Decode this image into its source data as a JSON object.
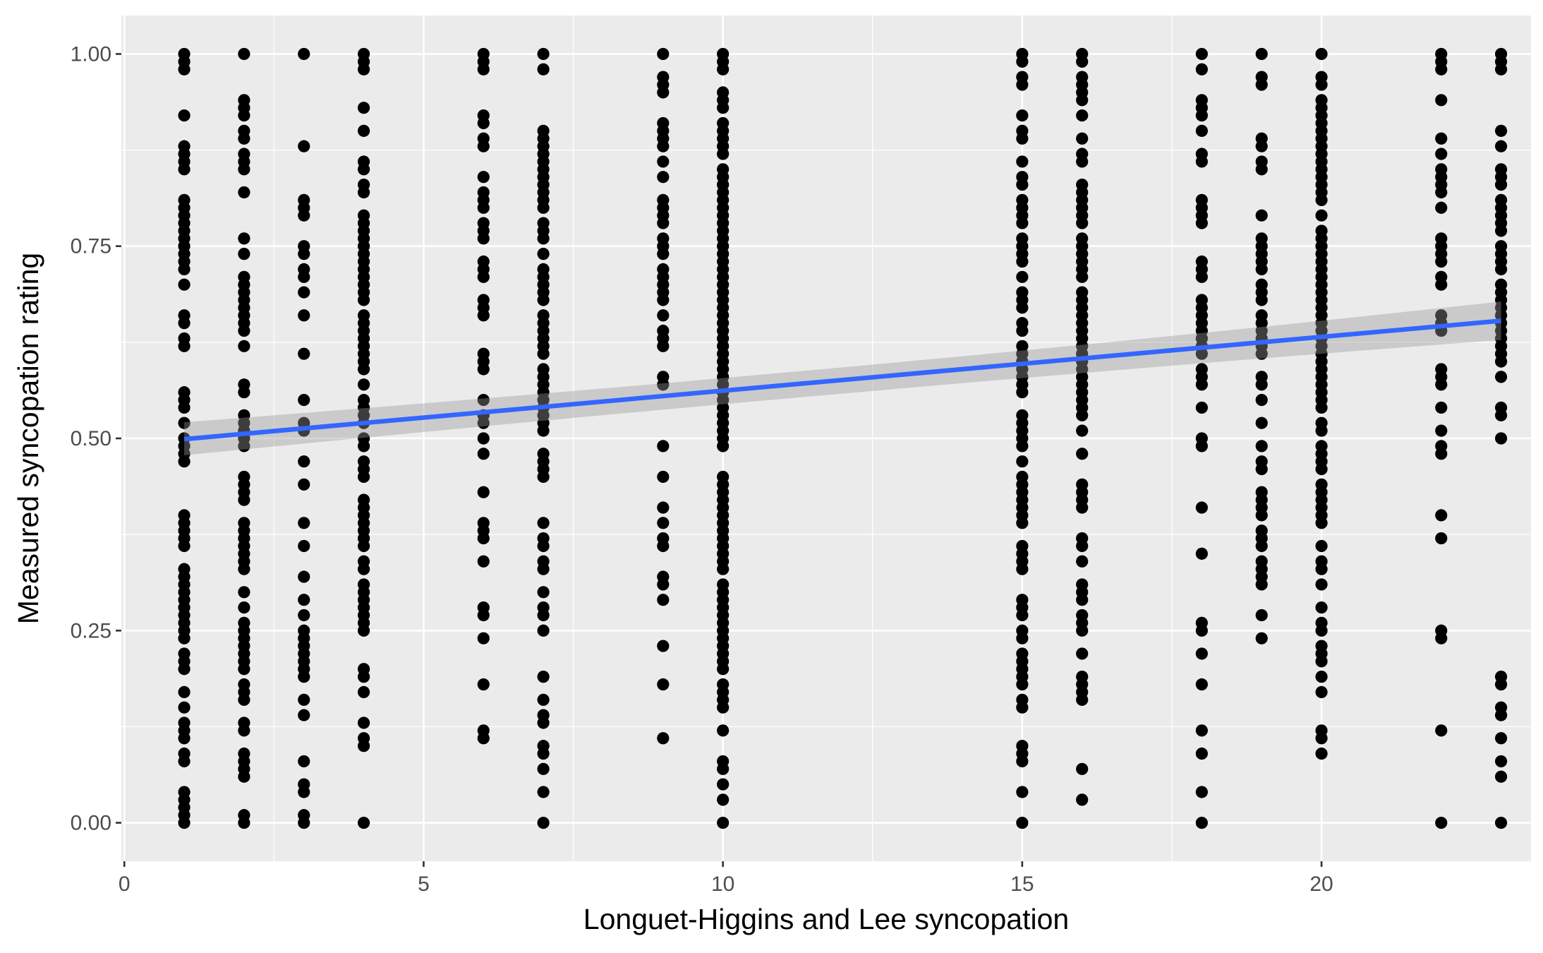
{
  "chart_data": {
    "type": "scatter",
    "title": "",
    "xlabel": "Longuet-Higgins and Lee syncopation",
    "ylabel": "Measured syncopation rating",
    "xlim": [
      -0.05,
      23.5
    ],
    "ylim": [
      -0.05,
      1.05
    ],
    "x_ticks": [
      0,
      5,
      10,
      15,
      20
    ],
    "x_tick_labels": [
      "0",
      "5",
      "10",
      "15",
      "20"
    ],
    "y_ticks": [
      0,
      0.25,
      0.5,
      0.75,
      1.0
    ],
    "y_tick_labels": [
      "0.00",
      "0.25",
      "0.50",
      "0.75",
      "1.00"
    ],
    "grid": true,
    "legend": "none",
    "colors": {
      "panel_background": "#ebebeb",
      "grid": "#ffffff",
      "points": "#000000",
      "fit_line": "#3366ff",
      "confidence_band": "#999999"
    },
    "points": [
      {
        "x": 1,
        "y": [
          1.0,
          0.99,
          0.98,
          0.92,
          0.88,
          0.87,
          0.86,
          0.85,
          0.81,
          0.8,
          0.79,
          0.78,
          0.77,
          0.76,
          0.75,
          0.74,
          0.73,
          0.72,
          0.7,
          0.66,
          0.65,
          0.63,
          0.62,
          0.56,
          0.55,
          0.54,
          0.52,
          0.5,
          0.49,
          0.48,
          0.47,
          0.4,
          0.39,
          0.38,
          0.37,
          0.36,
          0.33,
          0.32,
          0.31,
          0.3,
          0.29,
          0.28,
          0.27,
          0.26,
          0.25,
          0.24,
          0.22,
          0.21,
          0.2,
          0.17,
          0.15,
          0.13,
          0.12,
          0.11,
          0.09,
          0.08,
          0.04,
          0.03,
          0.02,
          0.01,
          0.0
        ]
      },
      {
        "x": 2,
        "y": [
          1.0,
          0.94,
          0.93,
          0.92,
          0.9,
          0.89,
          0.87,
          0.86,
          0.85,
          0.82,
          0.76,
          0.74,
          0.71,
          0.7,
          0.69,
          0.68,
          0.67,
          0.66,
          0.65,
          0.64,
          0.62,
          0.57,
          0.56,
          0.53,
          0.52,
          0.51,
          0.5,
          0.49,
          0.45,
          0.44,
          0.43,
          0.42,
          0.39,
          0.38,
          0.37,
          0.36,
          0.35,
          0.34,
          0.33,
          0.3,
          0.28,
          0.26,
          0.25,
          0.24,
          0.23,
          0.22,
          0.21,
          0.2,
          0.18,
          0.17,
          0.16,
          0.13,
          0.12,
          0.09,
          0.08,
          0.07,
          0.06,
          0.01,
          0.0
        ]
      },
      {
        "x": 3,
        "y": [
          1.0,
          0.88,
          0.81,
          0.8,
          0.79,
          0.75,
          0.74,
          0.72,
          0.71,
          0.69,
          0.66,
          0.61,
          0.55,
          0.52,
          0.51,
          0.47,
          0.44,
          0.39,
          0.36,
          0.32,
          0.29,
          0.27,
          0.25,
          0.24,
          0.23,
          0.22,
          0.21,
          0.2,
          0.19,
          0.16,
          0.14,
          0.08,
          0.05,
          0.04,
          0.01,
          0.0
        ]
      },
      {
        "x": 4,
        "y": [
          1.0,
          0.99,
          0.98,
          0.93,
          0.9,
          0.86,
          0.85,
          0.83,
          0.82,
          0.79,
          0.78,
          0.77,
          0.76,
          0.75,
          0.74,
          0.73,
          0.72,
          0.71,
          0.7,
          0.69,
          0.68,
          0.66,
          0.65,
          0.64,
          0.63,
          0.62,
          0.61,
          0.6,
          0.59,
          0.57,
          0.55,
          0.54,
          0.53,
          0.52,
          0.5,
          0.49,
          0.47,
          0.46,
          0.45,
          0.42,
          0.41,
          0.4,
          0.39,
          0.38,
          0.37,
          0.36,
          0.34,
          0.33,
          0.31,
          0.3,
          0.29,
          0.28,
          0.27,
          0.26,
          0.25,
          0.2,
          0.19,
          0.17,
          0.13,
          0.11,
          0.1,
          0.0
        ]
      },
      {
        "x": 6,
        "y": [
          1.0,
          0.99,
          0.98,
          0.92,
          0.91,
          0.89,
          0.88,
          0.84,
          0.82,
          0.81,
          0.8,
          0.78,
          0.77,
          0.76,
          0.73,
          0.72,
          0.71,
          0.68,
          0.67,
          0.66,
          0.61,
          0.6,
          0.59,
          0.55,
          0.53,
          0.52,
          0.5,
          0.48,
          0.43,
          0.39,
          0.38,
          0.37,
          0.34,
          0.28,
          0.27,
          0.24,
          0.18,
          0.12,
          0.11
        ]
      },
      {
        "x": 7,
        "y": [
          1.0,
          0.98,
          0.9,
          0.89,
          0.88,
          0.87,
          0.86,
          0.85,
          0.84,
          0.83,
          0.82,
          0.81,
          0.8,
          0.78,
          0.77,
          0.76,
          0.74,
          0.72,
          0.71,
          0.7,
          0.69,
          0.68,
          0.66,
          0.65,
          0.64,
          0.63,
          0.62,
          0.61,
          0.59,
          0.58,
          0.57,
          0.56,
          0.55,
          0.54,
          0.53,
          0.52,
          0.51,
          0.48,
          0.47,
          0.46,
          0.45,
          0.39,
          0.37,
          0.36,
          0.34,
          0.33,
          0.3,
          0.28,
          0.27,
          0.25,
          0.19,
          0.16,
          0.14,
          0.13,
          0.1,
          0.09,
          0.07,
          0.04,
          0.0
        ]
      },
      {
        "x": 9,
        "y": [
          1.0,
          0.97,
          0.96,
          0.95,
          0.91,
          0.9,
          0.89,
          0.88,
          0.86,
          0.84,
          0.81,
          0.8,
          0.79,
          0.78,
          0.76,
          0.75,
          0.74,
          0.72,
          0.71,
          0.7,
          0.69,
          0.68,
          0.66,
          0.64,
          0.63,
          0.62,
          0.58,
          0.57,
          0.49,
          0.45,
          0.41,
          0.39,
          0.37,
          0.36,
          0.32,
          0.31,
          0.29,
          0.23,
          0.18,
          0.11
        ]
      },
      {
        "x": 10,
        "y": [
          1.0,
          0.99,
          0.98,
          0.95,
          0.94,
          0.93,
          0.91,
          0.9,
          0.89,
          0.88,
          0.87,
          0.85,
          0.84,
          0.83,
          0.82,
          0.81,
          0.8,
          0.79,
          0.78,
          0.77,
          0.76,
          0.75,
          0.74,
          0.73,
          0.72,
          0.71,
          0.7,
          0.69,
          0.68,
          0.67,
          0.66,
          0.65,
          0.64,
          0.63,
          0.62,
          0.61,
          0.6,
          0.59,
          0.58,
          0.57,
          0.56,
          0.55,
          0.54,
          0.53,
          0.52,
          0.51,
          0.5,
          0.49,
          0.45,
          0.44,
          0.43,
          0.42,
          0.41,
          0.4,
          0.39,
          0.38,
          0.37,
          0.36,
          0.35,
          0.34,
          0.33,
          0.31,
          0.3,
          0.29,
          0.28,
          0.27,
          0.26,
          0.25,
          0.24,
          0.23,
          0.22,
          0.21,
          0.2,
          0.18,
          0.17,
          0.16,
          0.15,
          0.12,
          0.08,
          0.07,
          0.05,
          0.03,
          0.0
        ]
      },
      {
        "x": 15,
        "y": [
          1.0,
          0.99,
          0.97,
          0.96,
          0.92,
          0.9,
          0.89,
          0.86,
          0.84,
          0.83,
          0.81,
          0.8,
          0.79,
          0.78,
          0.76,
          0.75,
          0.74,
          0.73,
          0.71,
          0.69,
          0.68,
          0.67,
          0.65,
          0.64,
          0.62,
          0.61,
          0.6,
          0.59,
          0.58,
          0.57,
          0.56,
          0.53,
          0.52,
          0.51,
          0.5,
          0.49,
          0.47,
          0.45,
          0.44,
          0.43,
          0.42,
          0.41,
          0.4,
          0.39,
          0.36,
          0.35,
          0.34,
          0.33,
          0.29,
          0.28,
          0.27,
          0.25,
          0.24,
          0.22,
          0.21,
          0.2,
          0.19,
          0.18,
          0.16,
          0.15,
          0.1,
          0.09,
          0.08,
          0.04,
          0.0
        ]
      },
      {
        "x": 16,
        "y": [
          1.0,
          0.99,
          0.97,
          0.96,
          0.95,
          0.94,
          0.92,
          0.89,
          0.87,
          0.86,
          0.83,
          0.82,
          0.81,
          0.8,
          0.79,
          0.78,
          0.76,
          0.75,
          0.74,
          0.73,
          0.72,
          0.71,
          0.69,
          0.68,
          0.67,
          0.66,
          0.65,
          0.64,
          0.63,
          0.62,
          0.61,
          0.6,
          0.59,
          0.58,
          0.57,
          0.56,
          0.55,
          0.54,
          0.53,
          0.51,
          0.48,
          0.44,
          0.43,
          0.42,
          0.41,
          0.37,
          0.36,
          0.34,
          0.31,
          0.3,
          0.29,
          0.27,
          0.26,
          0.25,
          0.22,
          0.19,
          0.18,
          0.17,
          0.16,
          0.07,
          0.03
        ]
      },
      {
        "x": 18,
        "y": [
          1.0,
          0.98,
          0.94,
          0.93,
          0.92,
          0.9,
          0.87,
          0.86,
          0.81,
          0.8,
          0.79,
          0.78,
          0.73,
          0.72,
          0.71,
          0.68,
          0.67,
          0.66,
          0.65,
          0.64,
          0.63,
          0.62,
          0.61,
          0.59,
          0.58,
          0.57,
          0.54,
          0.5,
          0.49,
          0.41,
          0.35,
          0.26,
          0.25,
          0.22,
          0.18,
          0.12,
          0.09,
          0.04,
          0.0
        ]
      },
      {
        "x": 19,
        "y": [
          1.0,
          0.97,
          0.96,
          0.89,
          0.88,
          0.86,
          0.85,
          0.79,
          0.76,
          0.75,
          0.74,
          0.73,
          0.72,
          0.7,
          0.69,
          0.68,
          0.66,
          0.65,
          0.64,
          0.63,
          0.62,
          0.61,
          0.58,
          0.57,
          0.55,
          0.52,
          0.49,
          0.47,
          0.46,
          0.43,
          0.42,
          0.41,
          0.4,
          0.38,
          0.37,
          0.36,
          0.34,
          0.33,
          0.32,
          0.31,
          0.27,
          0.24
        ]
      },
      {
        "x": 20,
        "y": [
          1.0,
          0.97,
          0.96,
          0.94,
          0.93,
          0.92,
          0.91,
          0.9,
          0.89,
          0.88,
          0.87,
          0.86,
          0.85,
          0.84,
          0.83,
          0.82,
          0.81,
          0.79,
          0.77,
          0.76,
          0.75,
          0.74,
          0.73,
          0.72,
          0.71,
          0.7,
          0.69,
          0.68,
          0.67,
          0.66,
          0.65,
          0.64,
          0.63,
          0.62,
          0.61,
          0.6,
          0.59,
          0.58,
          0.57,
          0.56,
          0.55,
          0.54,
          0.52,
          0.51,
          0.49,
          0.48,
          0.47,
          0.46,
          0.44,
          0.43,
          0.42,
          0.41,
          0.4,
          0.39,
          0.36,
          0.34,
          0.33,
          0.31,
          0.28,
          0.26,
          0.25,
          0.23,
          0.22,
          0.21,
          0.19,
          0.17,
          0.12,
          0.11,
          0.09
        ]
      },
      {
        "x": 22,
        "y": [
          1.0,
          0.99,
          0.98,
          0.94,
          0.89,
          0.87,
          0.85,
          0.84,
          0.83,
          0.82,
          0.8,
          0.76,
          0.75,
          0.74,
          0.73,
          0.71,
          0.7,
          0.66,
          0.65,
          0.64,
          0.59,
          0.58,
          0.57,
          0.54,
          0.51,
          0.49,
          0.48,
          0.4,
          0.37,
          0.25,
          0.24,
          0.12,
          0.0
        ]
      },
      {
        "x": 23,
        "y": [
          1.0,
          0.99,
          0.98,
          0.9,
          0.88,
          0.85,
          0.84,
          0.83,
          0.81,
          0.8,
          0.79,
          0.78,
          0.77,
          0.75,
          0.74,
          0.73,
          0.72,
          0.7,
          0.69,
          0.68,
          0.67,
          0.66,
          0.65,
          0.64,
          0.63,
          0.62,
          0.61,
          0.6,
          0.58,
          0.54,
          0.53,
          0.5,
          0.19,
          0.18,
          0.15,
          0.14,
          0.11,
          0.08,
          0.06,
          0.0
        ]
      }
    ],
    "fit": {
      "method": "linear",
      "x_range": [
        1,
        23
      ],
      "y_at_start": 0.499,
      "y_at_end": 0.653,
      "band_at_start": [
        0.478,
        0.521
      ],
      "band_mid_x": 12.8,
      "band_at_mid": [
        0.569,
        0.591
      ],
      "band_at_end": [
        0.628,
        0.678
      ]
    }
  }
}
